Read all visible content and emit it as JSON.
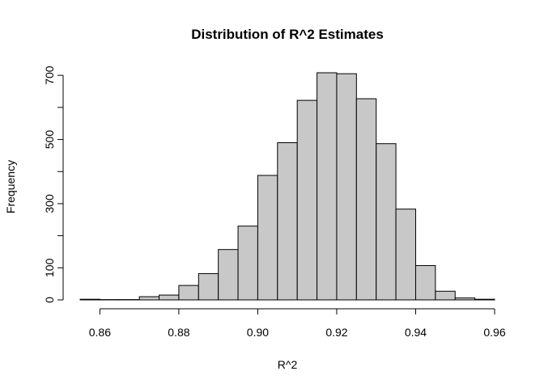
{
  "chart_data": {
    "type": "bar",
    "title": "Distribution of R^2 Estimates",
    "xlabel": "R^2",
    "ylabel": "Frequency",
    "bin_edges": [
      0.855,
      0.86,
      0.865,
      0.87,
      0.875,
      0.88,
      0.885,
      0.89,
      0.895,
      0.9,
      0.905,
      0.91,
      0.915,
      0.92,
      0.925,
      0.93,
      0.935,
      0.94,
      0.945,
      0.95,
      0.955,
      0.96
    ],
    "values": [
      2,
      1,
      1,
      10,
      15,
      45,
      82,
      157,
      230,
      388,
      490,
      622,
      708,
      705,
      627,
      487,
      283,
      107,
      27,
      6,
      2
    ],
    "xlim": [
      0.855,
      0.96
    ],
    "ylim": [
      0,
      708
    ],
    "x_ticks": [
      0.86,
      0.88,
      0.9,
      0.92,
      0.94,
      0.96
    ],
    "x_tick_labels": [
      "0.86",
      "0.88",
      "0.90",
      "0.92",
      "0.94",
      "0.96"
    ],
    "y_ticks": [
      0,
      100,
      200,
      300,
      400,
      500,
      600,
      700
    ],
    "y_tick_labels": [
      "0",
      "100",
      "",
      "300",
      "",
      "500",
      "",
      "700"
    ],
    "colors": {
      "bar_fill": "#c8c8c8",
      "bar_stroke": "#000000"
    },
    "grid": false
  }
}
